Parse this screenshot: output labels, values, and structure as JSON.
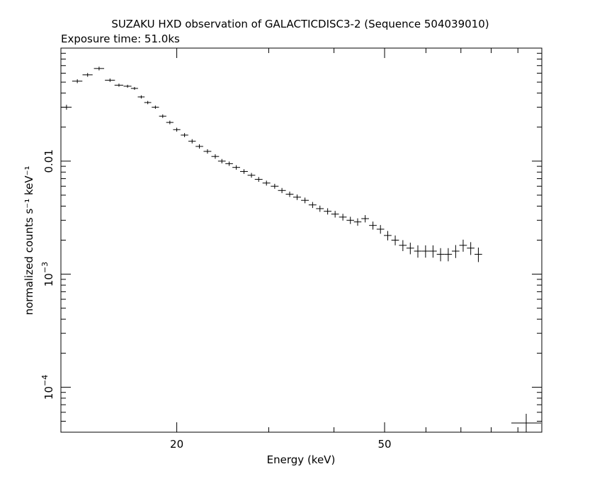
{
  "chart_data": {
    "type": "scatter",
    "title": "SUZAKU HXD observation of GALACTICDISC3-2 (Sequence 504039010)",
    "subtitle": "Exposure time: 51.0ks",
    "xlabel": "Energy (keV)",
    "ylabel": "normalized counts s⁻¹ keV⁻¹",
    "x_scale": "log",
    "y_scale": "log",
    "xlim": [
      12,
      100
    ],
    "ylim": [
      4e-05,
      0.1
    ],
    "x_ticks": [
      {
        "value": 20,
        "label": "20"
      },
      {
        "value": 50,
        "label": "50"
      }
    ],
    "y_ticks": [
      {
        "value": 0.01,
        "label": "0.01"
      },
      {
        "value": 0.001,
        "label": "10",
        "sup": "−3"
      },
      {
        "value": 0.0001,
        "label": "10",
        "sup": "−4"
      }
    ],
    "grid": false,
    "legend": "none",
    "series": [
      {
        "x": [
          12.3,
          12.9,
          13.5,
          14.2,
          14.9,
          15.5,
          16.1,
          16.6,
          17.1,
          17.6,
          18.2,
          18.8,
          19.4,
          20.0,
          20.7,
          21.4,
          22.1,
          22.9,
          23.7,
          24.4,
          25.2,
          26.0,
          26.9,
          27.8,
          28.7,
          29.7,
          30.8,
          31.8,
          32.9,
          34.0,
          35.2,
          36.4,
          37.6,
          38.9,
          40.2,
          41.6,
          43.0,
          44.4,
          45.9,
          47.5,
          49.1,
          50.7,
          52.4,
          54.2,
          56.0,
          57.9,
          59.9,
          61.9,
          64.0,
          66.2,
          68.4,
          70.7,
          73.1,
          75.6
        ],
        "y": [
          0.03,
          0.051,
          0.058,
          0.066,
          0.052,
          0.047,
          0.046,
          0.044,
          0.037,
          0.033,
          0.03,
          0.025,
          0.022,
          0.019,
          0.017,
          0.015,
          0.0135,
          0.0122,
          0.011,
          0.01,
          0.0095,
          0.0088,
          0.0081,
          0.0075,
          0.0069,
          0.0064,
          0.006,
          0.0055,
          0.0051,
          0.0048,
          0.0045,
          0.0041,
          0.0038,
          0.0036,
          0.0034,
          0.0032,
          0.003,
          0.0029,
          0.0031,
          0.0027,
          0.0025,
          0.0022,
          0.002,
          0.0018,
          0.0017,
          0.0016,
          0.0016,
          0.0016,
          0.0015,
          0.0015,
          0.0016,
          0.0018,
          0.0017,
          0.0015
        ],
        "x_err": [
          0.28,
          0.29,
          0.3,
          0.32,
          0.33,
          0.3,
          0.28,
          0.26,
          0.26,
          0.27,
          0.29,
          0.3,
          0.31,
          0.32,
          0.34,
          0.35,
          0.37,
          0.39,
          0.4,
          0.41,
          0.42,
          0.44,
          0.46,
          0.47,
          0.49,
          0.51,
          0.53,
          0.55,
          0.56,
          0.58,
          0.6,
          0.62,
          0.64,
          0.66,
          0.68,
          0.7,
          0.72,
          0.74,
          0.77,
          0.8,
          0.82,
          0.85,
          0.88,
          0.91,
          0.94,
          0.97,
          1.0,
          1.04,
          1.07,
          1.1,
          1.14,
          1.18,
          1.22,
          1.26
        ],
        "y_err": [
          0.0015,
          0.002,
          0.0022,
          0.0025,
          0.0018,
          0.0015,
          0.0014,
          0.0013,
          0.0012,
          0.0011,
          0.001,
          0.0009,
          0.0008,
          0.00075,
          0.0007,
          0.00065,
          0.0006,
          0.00055,
          0.0005,
          0.00045,
          0.00042,
          0.0004,
          0.00038,
          0.00036,
          0.00034,
          0.00032,
          0.0003,
          0.00029,
          0.00028,
          0.00027,
          0.00026,
          0.00025,
          0.00024,
          0.00023,
          0.00023,
          0.00022,
          0.00022,
          0.00022,
          0.00023,
          0.00022,
          0.00022,
          0.00021,
          0.0002,
          0.0002,
          0.0002,
          0.0002,
          0.0002,
          0.0002,
          0.0002,
          0.0002,
          0.00021,
          0.00022,
          0.00022,
          0.00022
        ]
      }
    ],
    "annotation": {
      "type": "error-bar-cross",
      "position": "bottom-right"
    }
  },
  "colors": {
    "background": "#ffffff",
    "ink": "#000000"
  }
}
